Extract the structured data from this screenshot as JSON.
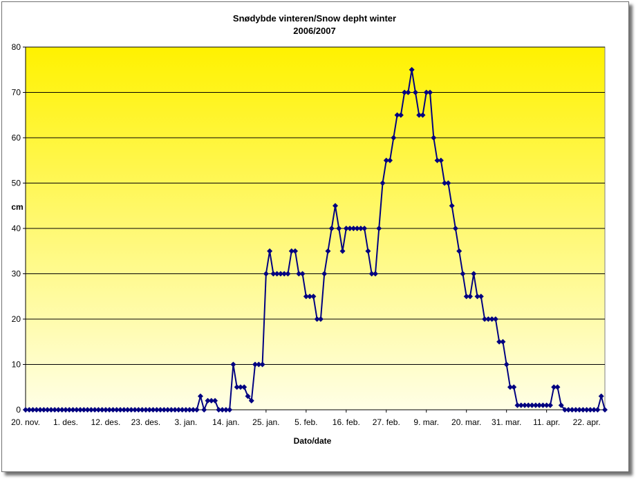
{
  "chart_data": {
    "type": "line",
    "title": "Snødybde vinteren/Snow depht winter",
    "subtitle": "2006/2007",
    "xlabel": "Dato/date",
    "ylabel": "cm",
    "ylim": [
      0,
      80
    ],
    "yticks": [
      0,
      10,
      20,
      30,
      40,
      50,
      60,
      70,
      80
    ],
    "xticks": [
      "20. nov.",
      "1. des.",
      "12. des.",
      "23. des.",
      "3. jan.",
      "14. jan.",
      "25. jan.",
      "5. feb.",
      "16. feb.",
      "27. feb.",
      "9. mar.",
      "20. mar.",
      "31. mar.",
      "11. apr.",
      "22. apr."
    ],
    "grid": true,
    "legend": "none",
    "colors": {
      "line": "#000080",
      "marker": "#000080",
      "gradient_top": "#FFF200",
      "gradient_bottom": "#FFFFE6",
      "grid": "#000000"
    },
    "series": [
      {
        "values": [
          0,
          0,
          0,
          0,
          0,
          0,
          0,
          0,
          0,
          0,
          0,
          0,
          0,
          0,
          0,
          0,
          0,
          0,
          0,
          0,
          0,
          0,
          0,
          0,
          0,
          0,
          0,
          0,
          0,
          0,
          0,
          0,
          0,
          0,
          0,
          0,
          0,
          0,
          0,
          0,
          0,
          0,
          0,
          0,
          0,
          0,
          0,
          0,
          3,
          0,
          2,
          2,
          2,
          0,
          0,
          0,
          0,
          10,
          5,
          5,
          5,
          3,
          2,
          10,
          10,
          10,
          30,
          35,
          30,
          30,
          30,
          30,
          30,
          35,
          35,
          30,
          30,
          25,
          25,
          25,
          20,
          20,
          30,
          35,
          40,
          45,
          40,
          35,
          40,
          40,
          40,
          40,
          40,
          40,
          35,
          30,
          30,
          40,
          50,
          55,
          55,
          60,
          65,
          65,
          70,
          70,
          75,
          70,
          65,
          65,
          70,
          70,
          60,
          55,
          55,
          50,
          50,
          45,
          40,
          35,
          30,
          25,
          25,
          30,
          25,
          25,
          20,
          20,
          20,
          20,
          15,
          15,
          10,
          5,
          5,
          1,
          1,
          1,
          1,
          1,
          1,
          1,
          1,
          1,
          1,
          5,
          5,
          1,
          0,
          0,
          0,
          0,
          0,
          0,
          0,
          0,
          0,
          0,
          3,
          0
        ]
      }
    ]
  }
}
